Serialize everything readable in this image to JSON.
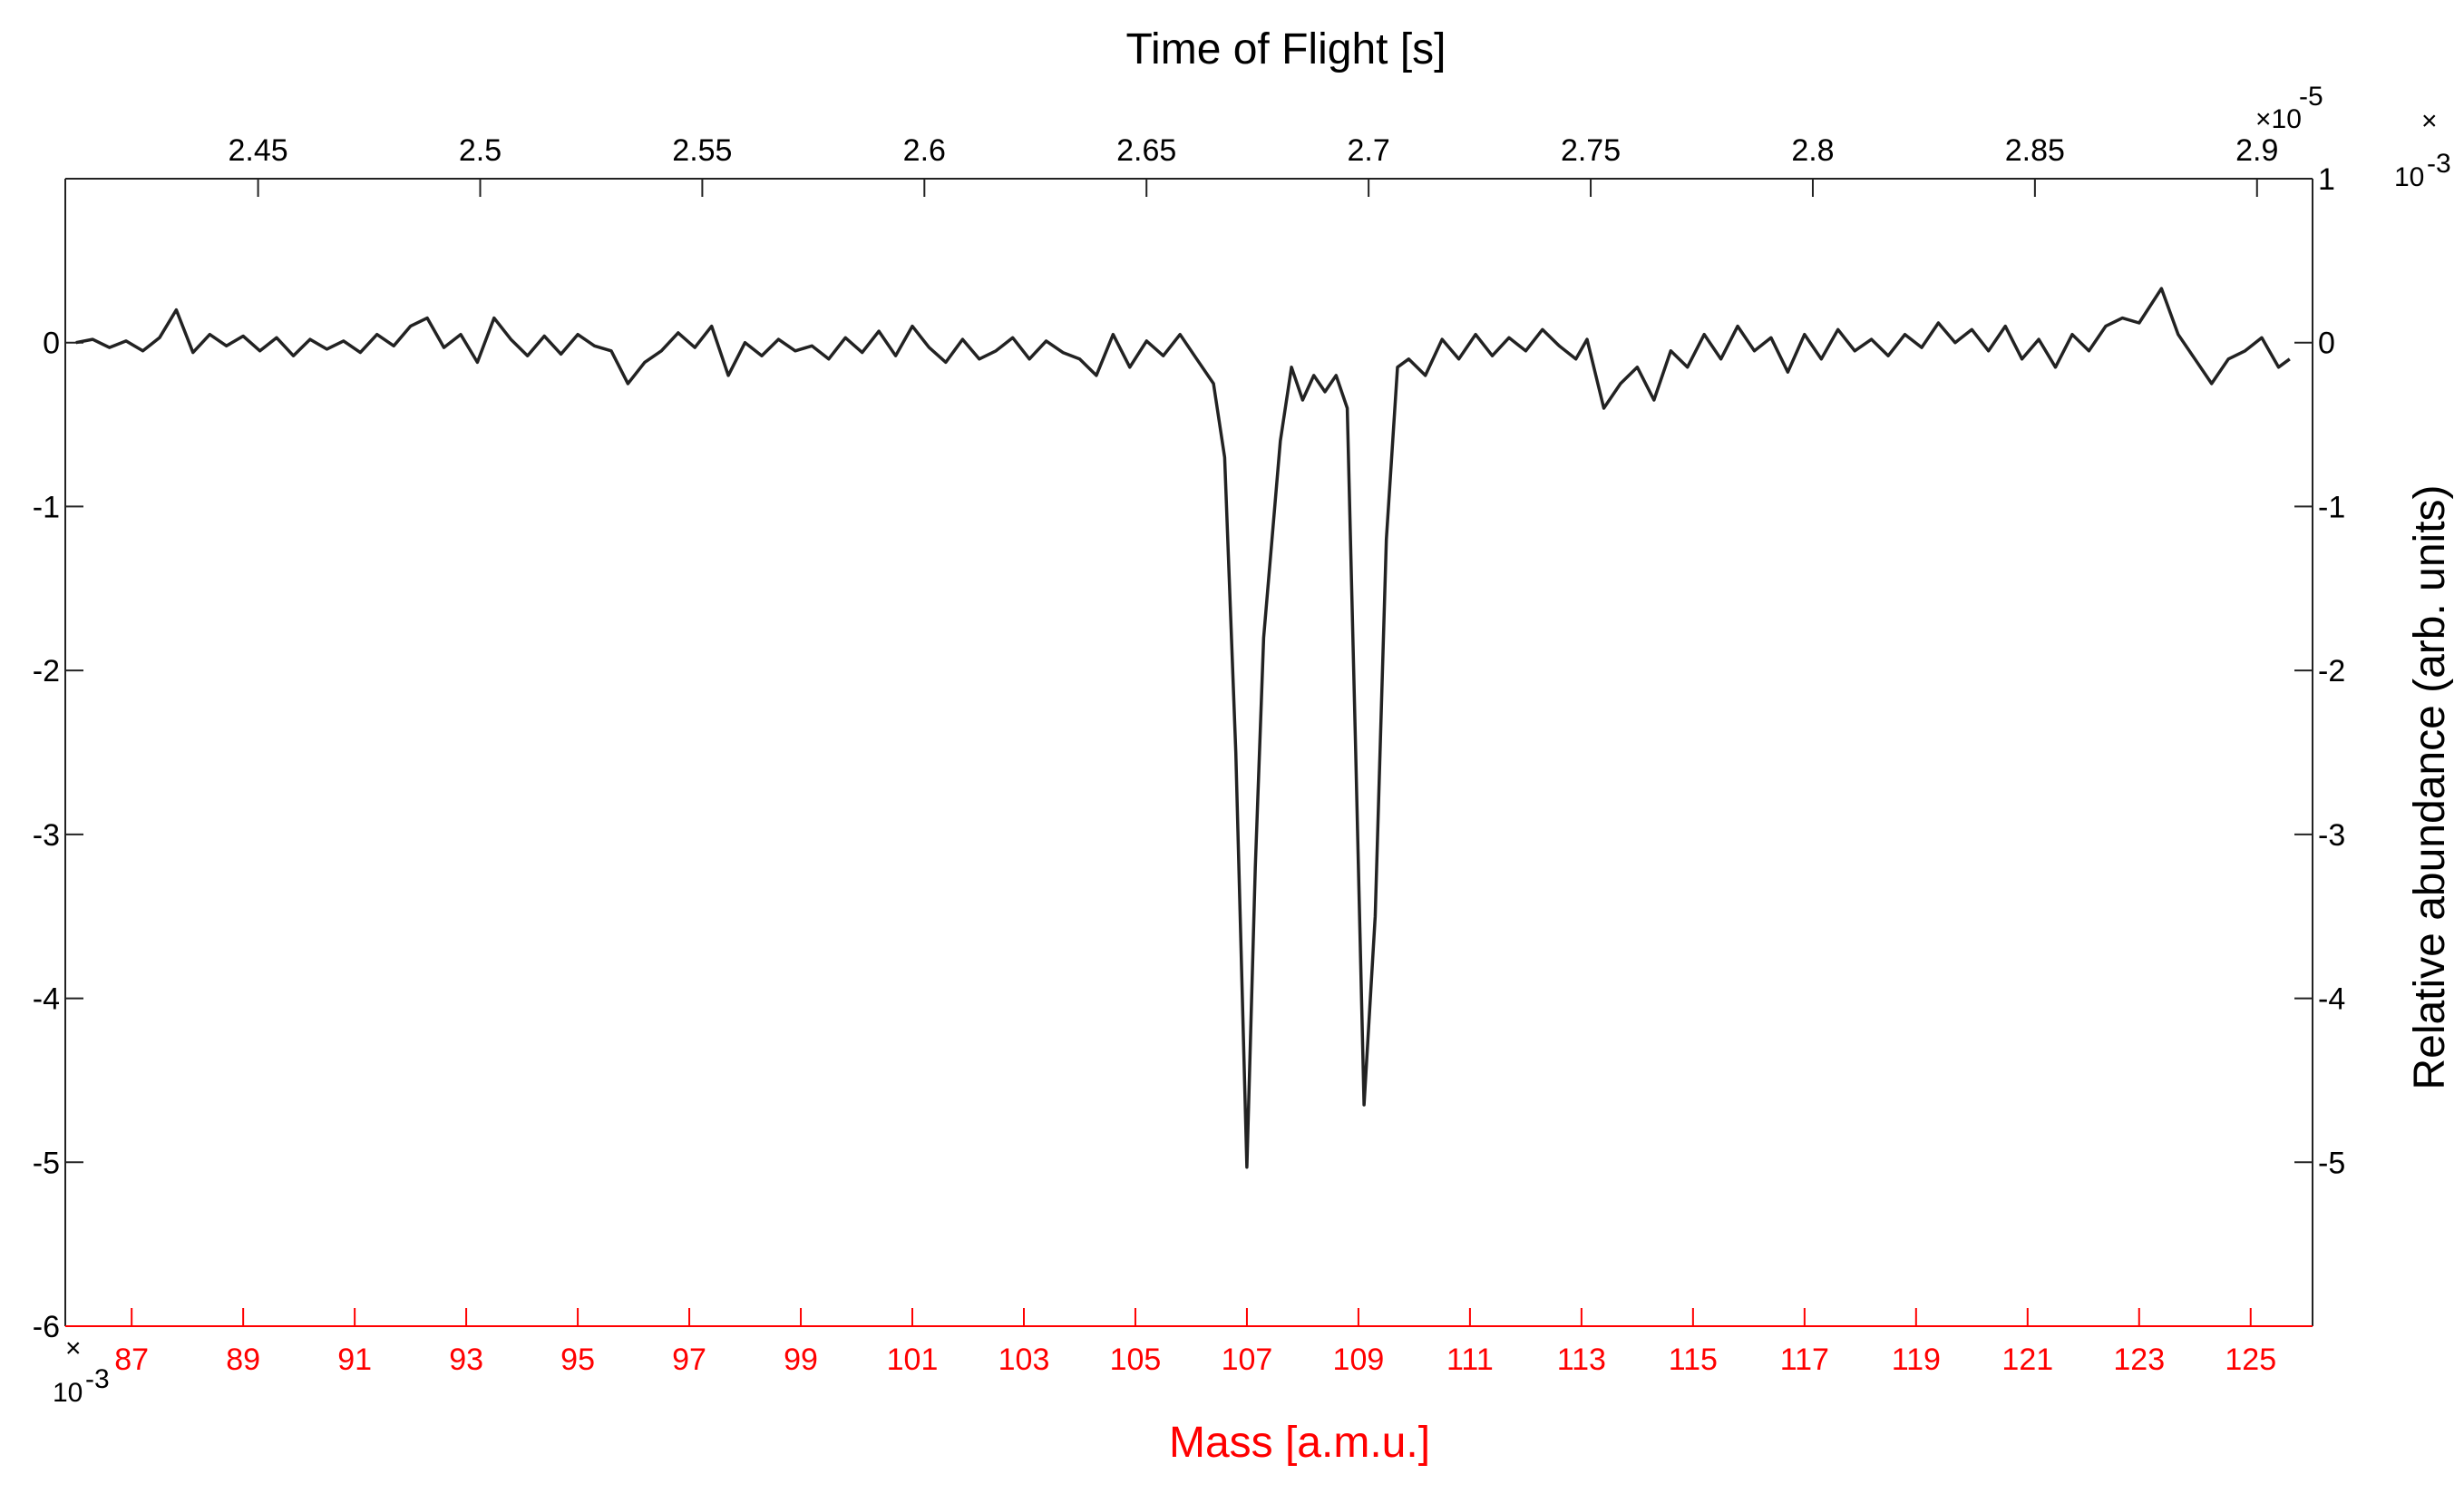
{
  "chart_data": {
    "type": "line",
    "top_axis": {
      "title": "Time of Flight [s]",
      "exponent_label": "×10",
      "exponent_power": "-5",
      "ticks": [
        2.45,
        2.5,
        2.55,
        2.6,
        2.65,
        2.7,
        2.75,
        2.8,
        2.85,
        2.9
      ],
      "tick_labels": [
        "2.45",
        "2.5",
        "2.55",
        "2.6",
        "2.65",
        "2.7",
        "2.75",
        "2.8",
        "2.85",
        "2.9"
      ],
      "range": [
        2.4066,
        2.9125
      ]
    },
    "bottom_axis": {
      "title": "Mass [a.m.u.]",
      "ticks": [
        87,
        89,
        91,
        93,
        95,
        97,
        99,
        101,
        103,
        105,
        107,
        109,
        111,
        113,
        115,
        117,
        119,
        121,
        123,
        125
      ],
      "tick_labels": [
        "87",
        "89",
        "91",
        "93",
        "95",
        "97",
        "99",
        "101",
        "103",
        "105",
        "107",
        "109",
        "111",
        "113",
        "115",
        "117",
        "119",
        "121",
        "123",
        "125"
      ],
      "range": [
        85.81,
        126.11
      ],
      "color": "#ff0000"
    },
    "left_axis": {
      "ticks": [
        0,
        -1,
        -2,
        -3,
        -4,
        -5,
        -6
      ],
      "tick_labels": [
        "0",
        "-1",
        "-2",
        "-3",
        "-4",
        "-5",
        "-6"
      ],
      "exponent_label": "×",
      "exponent_power": "10",
      "exponent_suffix": "-3",
      "range": [
        -6,
        1
      ]
    },
    "right_axis": {
      "title": "Relative abundance (arb. units)",
      "ticks": [
        1,
        0,
        -1,
        -2,
        -3,
        -4,
        -5
      ],
      "tick_labels": [
        "1",
        "0",
        "-1",
        "-2",
        "-3",
        "-4",
        "-5"
      ],
      "exponent_label": "×",
      "exponent_power": "10",
      "exponent_suffix": "-3",
      "range": [
        -6,
        1
      ]
    },
    "series": [
      {
        "line_color": "#222222",
        "points": [
          [
            86.0,
            0.0
          ],
          [
            86.3,
            0.02
          ],
          [
            86.6,
            -0.03
          ],
          [
            86.9,
            0.01
          ],
          [
            87.2,
            -0.05
          ],
          [
            87.5,
            0.03
          ],
          [
            87.8,
            0.2
          ],
          [
            88.1,
            -0.06
          ],
          [
            88.4,
            0.05
          ],
          [
            88.7,
            -0.02
          ],
          [
            89.0,
            0.04
          ],
          [
            89.3,
            -0.05
          ],
          [
            89.6,
            0.03
          ],
          [
            89.9,
            -0.08
          ],
          [
            90.2,
            0.02
          ],
          [
            90.5,
            -0.04
          ],
          [
            90.8,
            0.01
          ],
          [
            91.1,
            -0.06
          ],
          [
            91.4,
            0.05
          ],
          [
            91.7,
            -0.02
          ],
          [
            92.0,
            0.1
          ],
          [
            92.3,
            0.15
          ],
          [
            92.6,
            -0.03
          ],
          [
            92.9,
            0.05
          ],
          [
            93.2,
            -0.12
          ],
          [
            93.5,
            0.15
          ],
          [
            93.8,
            0.02
          ],
          [
            94.1,
            -0.08
          ],
          [
            94.4,
            0.04
          ],
          [
            94.7,
            -0.07
          ],
          [
            95.0,
            0.05
          ],
          [
            95.3,
            -0.02
          ],
          [
            95.6,
            -0.05
          ],
          [
            95.9,
            -0.25
          ],
          [
            96.2,
            -0.12
          ],
          [
            96.5,
            -0.05
          ],
          [
            96.8,
            0.06
          ],
          [
            97.1,
            -0.03
          ],
          [
            97.4,
            0.1
          ],
          [
            97.7,
            -0.2
          ],
          [
            98.0,
            0.0
          ],
          [
            98.3,
            -0.08
          ],
          [
            98.6,
            0.02
          ],
          [
            98.9,
            -0.05
          ],
          [
            99.2,
            -0.02
          ],
          [
            99.5,
            -0.1
          ],
          [
            99.8,
            0.03
          ],
          [
            100.1,
            -0.06
          ],
          [
            100.4,
            0.07
          ],
          [
            100.7,
            -0.08
          ],
          [
            101.0,
            0.1
          ],
          [
            101.3,
            -0.03
          ],
          [
            101.6,
            -0.12
          ],
          [
            101.9,
            0.02
          ],
          [
            102.2,
            -0.1
          ],
          [
            102.5,
            -0.05
          ],
          [
            102.8,
            0.03
          ],
          [
            103.1,
            -0.1
          ],
          [
            103.4,
            0.01
          ],
          [
            103.7,
            -0.06
          ],
          [
            104.0,
            -0.1
          ],
          [
            104.3,
            -0.2
          ],
          [
            104.6,
            0.05
          ],
          [
            104.9,
            -0.15
          ],
          [
            105.2,
            0.01
          ],
          [
            105.5,
            -0.08
          ],
          [
            105.8,
            0.05
          ],
          [
            106.1,
            -0.1
          ],
          [
            106.4,
            -0.25
          ],
          [
            106.6,
            -0.7
          ],
          [
            106.8,
            -2.5
          ],
          [
            107.0,
            -5.03
          ],
          [
            107.15,
            -3.2
          ],
          [
            107.3,
            -1.8
          ],
          [
            107.45,
            -1.2
          ],
          [
            107.6,
            -0.6
          ],
          [
            107.8,
            -0.15
          ],
          [
            108.0,
            -0.35
          ],
          [
            108.2,
            -0.2
          ],
          [
            108.4,
            -0.3
          ],
          [
            108.6,
            -0.2
          ],
          [
            108.8,
            -0.4
          ],
          [
            108.95,
            -2.5
          ],
          [
            109.1,
            -4.65
          ],
          [
            109.3,
            -3.5
          ],
          [
            109.5,
            -1.2
          ],
          [
            109.7,
            -0.15
          ],
          [
            109.9,
            -0.1
          ],
          [
            110.2,
            -0.2
          ],
          [
            110.5,
            0.02
          ],
          [
            110.8,
            -0.1
          ],
          [
            111.1,
            0.05
          ],
          [
            111.4,
            -0.08
          ],
          [
            111.7,
            0.03
          ],
          [
            112.0,
            -0.05
          ],
          [
            112.3,
            0.08
          ],
          [
            112.6,
            -0.02
          ],
          [
            112.9,
            -0.1
          ],
          [
            113.1,
            0.02
          ],
          [
            113.4,
            -0.4
          ],
          [
            113.7,
            -0.25
          ],
          [
            114.0,
            -0.15
          ],
          [
            114.3,
            -0.35
          ],
          [
            114.6,
            -0.05
          ],
          [
            114.9,
            -0.15
          ],
          [
            115.2,
            0.05
          ],
          [
            115.5,
            -0.1
          ],
          [
            115.8,
            0.1
          ],
          [
            116.1,
            -0.05
          ],
          [
            116.4,
            0.03
          ],
          [
            116.7,
            -0.18
          ],
          [
            117.0,
            0.05
          ],
          [
            117.3,
            -0.1
          ],
          [
            117.6,
            0.08
          ],
          [
            117.9,
            -0.05
          ],
          [
            118.2,
            0.02
          ],
          [
            118.5,
            -0.08
          ],
          [
            118.8,
            0.05
          ],
          [
            119.1,
            -0.03
          ],
          [
            119.4,
            0.12
          ],
          [
            119.7,
            0.0
          ],
          [
            120.0,
            0.08
          ],
          [
            120.3,
            -0.05
          ],
          [
            120.6,
            0.1
          ],
          [
            120.9,
            -0.1
          ],
          [
            121.2,
            0.02
          ],
          [
            121.5,
            -0.15
          ],
          [
            121.8,
            0.05
          ],
          [
            122.1,
            -0.05
          ],
          [
            122.4,
            0.1
          ],
          [
            122.7,
            0.15
          ],
          [
            123.0,
            0.12
          ],
          [
            123.4,
            0.33
          ],
          [
            123.7,
            0.05
          ],
          [
            124.0,
            -0.1
          ],
          [
            124.3,
            -0.25
          ],
          [
            124.6,
            -0.1
          ],
          [
            124.9,
            -0.05
          ],
          [
            125.2,
            0.03
          ],
          [
            125.5,
            -0.15
          ],
          [
            125.7,
            -0.1
          ]
        ]
      }
    ]
  }
}
